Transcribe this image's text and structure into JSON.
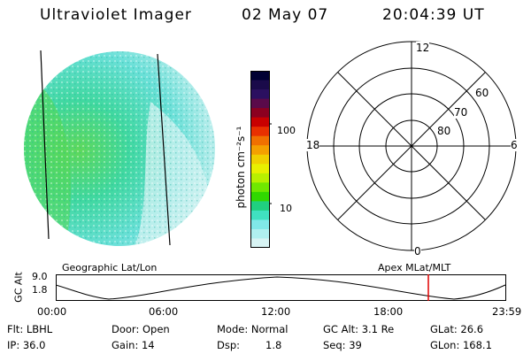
{
  "header": {
    "instrument": "Ultraviolet Imager",
    "date": "02 May 07",
    "time": "20:04:39 UT"
  },
  "colorbar": {
    "unit_label": "photon cm⁻²s⁻¹",
    "ticks": [
      "100",
      "10"
    ],
    "colors": [
      "#000033",
      "#1a0a4a",
      "#2b1060",
      "#5a0a4a",
      "#8b0020",
      "#c80000",
      "#e83000",
      "#f07000",
      "#f4a000",
      "#f0d000",
      "#e8f000",
      "#b8f000",
      "#70e800",
      "#30d800",
      "#20d080",
      "#40e0c0",
      "#80e8e8",
      "#b0f0f0",
      "#d8f4f4"
    ]
  },
  "polar_grid": {
    "mlt_labels": {
      "top": "12",
      "right": "6",
      "bottom": "0",
      "left": "18"
    },
    "lat_labels": [
      "60",
      "70",
      "80"
    ]
  },
  "orbit_plot": {
    "left_title": "Geographic Lat/Lon",
    "right_title": "Apex MLat/MLT",
    "y_label": "GC Alt",
    "y_ticks": [
      "9.0",
      "1.8"
    ],
    "x_ticks": [
      "00:00",
      "06:00",
      "12:00",
      "18:00",
      "23:59"
    ],
    "marker_color": "#e00000"
  },
  "info": {
    "flt": "Flt: LBHL",
    "ip": "IP: 36.0",
    "door": "Door: Open",
    "gain": "Gain: 14",
    "mode": "Mode: Normal",
    "dsp_label": "Dsp:",
    "dsp_value": "1.8",
    "gc_alt": "GC Alt: 3.1 Re",
    "seq": "Seq: 39",
    "glat": "GLat:  26.6",
    "glon": "GLon: 168.1"
  }
}
